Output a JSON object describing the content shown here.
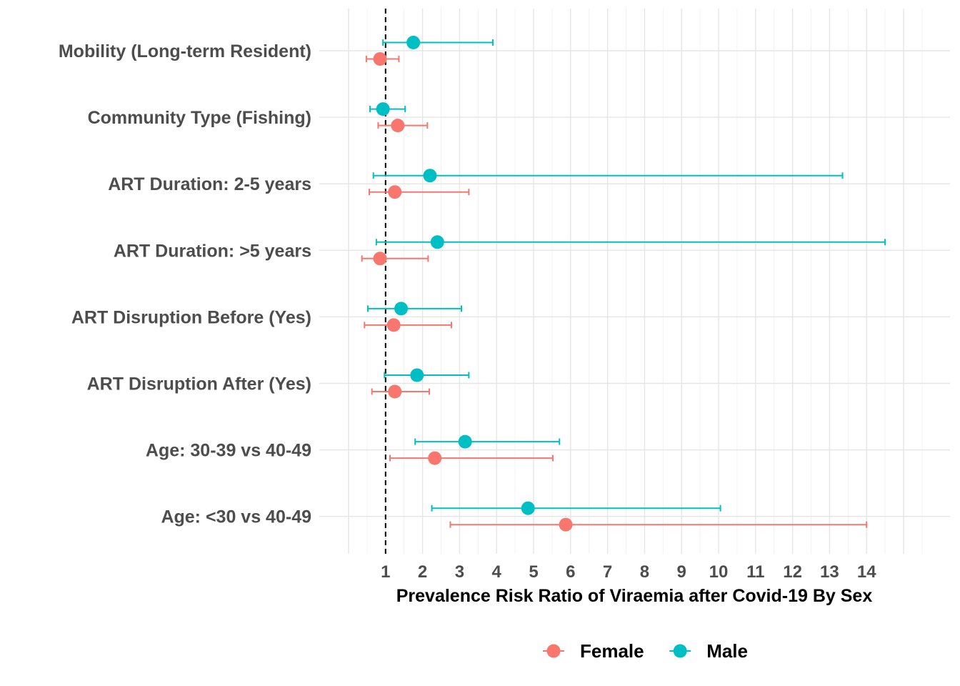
{
  "chart_data": {
    "type": "forest",
    "title": "",
    "xlabel": "Prevalence Risk Ratio of Viraemia after Covid-19 By Sex",
    "ylabel": "",
    "xlim": [
      0,
      15.5
    ],
    "xticks": [
      1,
      2,
      3,
      4,
      5,
      6,
      7,
      8,
      9,
      10,
      11,
      12,
      13,
      14
    ],
    "reference_line": 1,
    "grid": true,
    "legend_position": "bottom",
    "categories": [
      "Mobility (Long-term Resident)",
      "Community Type (Fishing)",
      "ART Duration: 2-5 years",
      "ART Duration: >5 years",
      "ART Disruption Before (Yes)",
      "ART Disruption After (Yes)",
      "Age: 30-39 vs 40-49",
      "Age: <30 vs 40-49"
    ],
    "series": [
      {
        "name": "Female",
        "color": "#F8766D",
        "estimate": [
          0.85,
          1.33,
          1.25,
          0.85,
          1.22,
          1.25,
          2.33,
          5.87
        ],
        "lower": [
          0.48,
          0.8,
          0.56,
          0.36,
          0.43,
          0.63,
          1.12,
          2.75
        ],
        "upper": [
          1.36,
          2.13,
          3.25,
          2.15,
          2.78,
          2.18,
          5.52,
          14.0
        ]
      },
      {
        "name": "Male",
        "color": "#00BFC4",
        "estimate": [
          1.75,
          0.93,
          2.2,
          2.4,
          1.42,
          1.85,
          3.15,
          4.85
        ],
        "lower": [
          0.93,
          0.58,
          0.67,
          0.75,
          0.52,
          0.97,
          1.8,
          2.25
        ],
        "upper": [
          3.9,
          1.53,
          13.35,
          14.5,
          3.05,
          3.25,
          5.7,
          10.05
        ]
      }
    ]
  }
}
